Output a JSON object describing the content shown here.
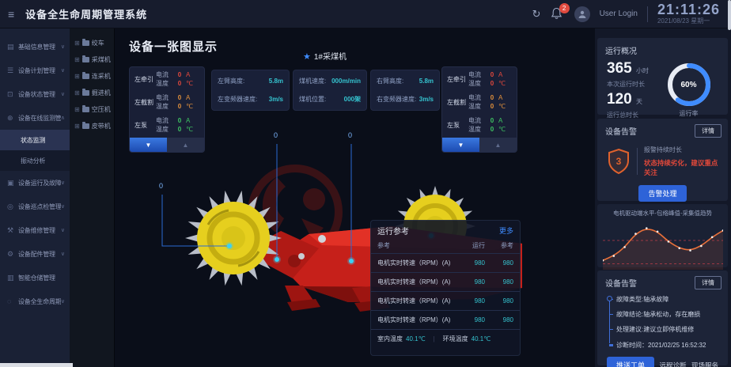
{
  "colors": {
    "accent": "#3f8cff",
    "btn_primary": "#2e63d8",
    "teal": "#35c3cf",
    "red": "#e2483c",
    "orange": "#e2913c",
    "green": "#3fc463",
    "alarm_orange": "#e0622d",
    "machine_red": "#c6201a",
    "drum_yellow": "#e6cf1e"
  },
  "header": {
    "menu_icon": "≡",
    "title": "设备全生命周期管理系统",
    "refresh_icon": "↻",
    "notification_count": "2",
    "user_label": "User Login",
    "time": "21:11:26",
    "date": "2021/08/23 星期一"
  },
  "sidebar": {
    "items": [
      {
        "icon": "▤",
        "label": "基础信息管理",
        "chevron": "∨"
      },
      {
        "icon": "☰",
        "label": "设备计划管理",
        "chevron": "∨"
      },
      {
        "icon": "⊡",
        "label": "设备状态管理",
        "chevron": "∨"
      },
      {
        "icon": "⊕",
        "label": "设备在线监测管理",
        "chevron": "∧"
      },
      {
        "label": "状态监测",
        "active": true
      },
      {
        "label": "振动分析"
      },
      {
        "icon": "▣",
        "label": "设备运行及故障管理",
        "chevron": "∨"
      },
      {
        "icon": "◎",
        "label": "设备巡点检管理",
        "chevron": "∨"
      },
      {
        "icon": "⚒",
        "label": "设备维修管理",
        "chevron": "∨"
      },
      {
        "icon": "⚙",
        "label": "设备配件管理",
        "chevron": "∨"
      },
      {
        "icon": "▥",
        "label": "智能仓储管理",
        "chevron": ""
      },
      {
        "icon": "◌",
        "label": "设备全生命周期模拟",
        "chevron": "∨"
      }
    ]
  },
  "tree": {
    "items": [
      {
        "expand": "⊞",
        "label": "绞车"
      },
      {
        "expand": "⊞",
        "label": "采煤机"
      },
      {
        "expand": "⊞",
        "label": "连采机"
      },
      {
        "expand": "⊞",
        "label": "掘进机"
      },
      {
        "expand": "⊞",
        "label": "空压机"
      },
      {
        "expand": "⊞",
        "label": "皮带机"
      }
    ]
  },
  "main": {
    "title": "设备一张图显示",
    "device_star": "★",
    "device_label": "1#采煤机",
    "arrow_down": "▼",
    "arrow_up": "▲",
    "callout_label": "0",
    "sensor_left": {
      "rows": [
        {
          "name": "左牵引",
          "color": "red",
          "metrics": [
            {
              "label": "电流",
              "value": "0",
              "unit": "A"
            },
            {
              "label": "温度",
              "value": "0",
              "unit": "℃"
            }
          ]
        },
        {
          "name": "左截割",
          "color": "orange",
          "metrics": [
            {
              "label": "电流",
              "value": "0",
              "unit": "A"
            },
            {
              "label": "温度",
              "value": "0",
              "unit": "℃"
            }
          ]
        },
        {
          "name": "左泵",
          "color": "green",
          "metrics": [
            {
              "label": "电流",
              "value": "0",
              "unit": "A"
            },
            {
              "label": "温度",
              "value": "0",
              "unit": "℃"
            }
          ]
        }
      ]
    },
    "sensor_right": {
      "rows": [
        {
          "name": "左牵引",
          "color": "red",
          "metrics": [
            {
              "label": "电流",
              "value": "0",
              "unit": "A"
            },
            {
              "label": "温度",
              "value": "0",
              "unit": "℃"
            }
          ]
        },
        {
          "name": "左截割",
          "color": "orange",
          "metrics": [
            {
              "label": "电流",
              "value": "0",
              "unit": "A"
            },
            {
              "label": "温度",
              "value": "0",
              "unit": "℃"
            }
          ]
        },
        {
          "name": "左泵",
          "color": "green",
          "metrics": [
            {
              "label": "电流",
              "value": "0",
              "unit": "A"
            },
            {
              "label": "温度",
              "value": "0",
              "unit": "℃"
            }
          ]
        }
      ]
    },
    "stat_cards": [
      {
        "rows": [
          {
            "label": "左臂高度:",
            "value": "5.8m"
          },
          {
            "label": "左变频器速度:",
            "value": "3m/s"
          }
        ]
      },
      {
        "rows": [
          {
            "label": "煤机速度:",
            "value": "000m/min"
          },
          {
            "label": "煤机位置:",
            "value": "000架"
          }
        ]
      },
      {
        "rows": [
          {
            "label": "右臂高度:",
            "value": "5.8m"
          },
          {
            "label": "右变频器速度:",
            "value": "3m/s"
          }
        ]
      }
    ],
    "ref_table": {
      "title": "运行参考",
      "more": "更多",
      "col_label": "参考",
      "col_run": "运行",
      "col_ref": "参考",
      "rows": [
        {
          "label": "电机实时转速（RPM）(A)",
          "run": "980",
          "ref": "980"
        },
        {
          "label": "电机实时转速（RPM）(A)",
          "run": "980",
          "ref": "980"
        },
        {
          "label": "电机实时转速（RPM）(A)",
          "run": "980",
          "ref": "980"
        },
        {
          "label": "电机实时转速（RPM）(A)",
          "run": "980",
          "ref": "980"
        }
      ],
      "footer": {
        "room_label": "室内温度",
        "room_value": "40.1℃",
        "sep": "|",
        "env_label": "环境温度",
        "env_value": "40.1℃"
      }
    }
  },
  "right_panel": {
    "overview": {
      "title": "运行概况",
      "hours_value": "365",
      "hours_unit": "小时",
      "hours_label": "本次运行时长",
      "days_value": "120",
      "days_unit": "天",
      "days_label": "运行总时长"
    },
    "alarm": {
      "title": "设备告警",
      "detail": "详情",
      "count": "3",
      "duration_label": "报警持续时长",
      "warning": "状态持续劣化，建议重点关注",
      "action": "告警处理"
    },
    "diagnosis": {
      "title": "设备告警",
      "detail": "详情",
      "items": [
        "故障类型:轴承故障",
        "故障结论:轴承松动，存在磨损",
        "处理建议:建议立即停机维修"
      ],
      "time_label": "诊断时间：",
      "time_value": "2021/02/25 16:52:32",
      "buttons": [
        "推送工单",
        "远程诊断",
        "现场服务"
      ]
    }
  },
  "chart_data": [
    {
      "type": "donut",
      "title": "运行率",
      "value": 60,
      "label": "60%",
      "color": "#3f8cff",
      "track_color": "#e8ecf4",
      "legend_position": "none"
    },
    {
      "type": "line",
      "title": "电机驱动端水平-包络峰值-采集值趋势",
      "x": [
        1,
        2,
        3,
        4,
        5,
        6,
        7,
        8,
        9,
        10,
        11,
        12
      ],
      "values": [
        14,
        22,
        38,
        62,
        72,
        66,
        48,
        36,
        32,
        40,
        56,
        68
      ],
      "ylim": [
        0,
        80
      ],
      "thresholds": [
        50,
        8
      ],
      "line_color": "#e8703a",
      "threshold_color": "#d8414e",
      "grid": false,
      "legend_position": "none"
    }
  ]
}
